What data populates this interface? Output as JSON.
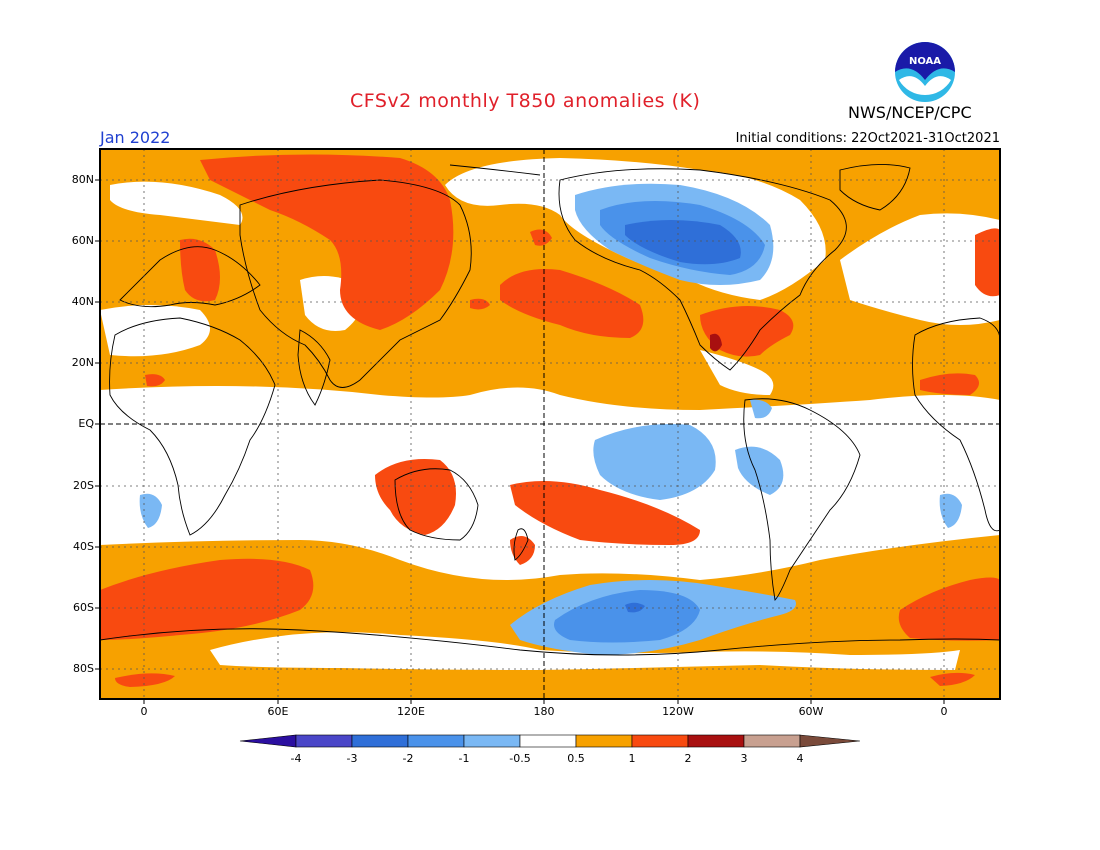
{
  "header": {
    "title": "CFSv2 monthly T850 anomalies (K)",
    "month": "Jan 2022",
    "initial_conditions": "Initial conditions: 22Oct2021-31Oct2021",
    "agency": "NWS/NCEP/CPC",
    "logo_text": "NOAA"
  },
  "axes": {
    "latitude_labels": [
      "80N",
      "60N",
      "40N",
      "20N",
      "EQ",
      "20S",
      "40S",
      "60S",
      "80S"
    ],
    "longitude_labels": [
      "0",
      "60E",
      "120E",
      "180",
      "120W",
      "60W",
      "0"
    ]
  },
  "colorbar": {
    "labels": [
      "-4",
      "-3",
      "-2",
      "-1",
      "-0.5",
      "0.5",
      "1",
      "2",
      "3",
      "4"
    ],
    "colors": [
      "#2b0fa0",
      "#4a46c8",
      "#2f6fd8",
      "#4a92ea",
      "#7ab8f4",
      "#ffffff",
      "#f7a100",
      "#f84a10",
      "#a81010",
      "#c8a090",
      "#7a4a3a"
    ]
  },
  "map": {
    "ocean_background": "#ffffff",
    "frame_color": "#000000",
    "grid_style": "dotted"
  }
}
